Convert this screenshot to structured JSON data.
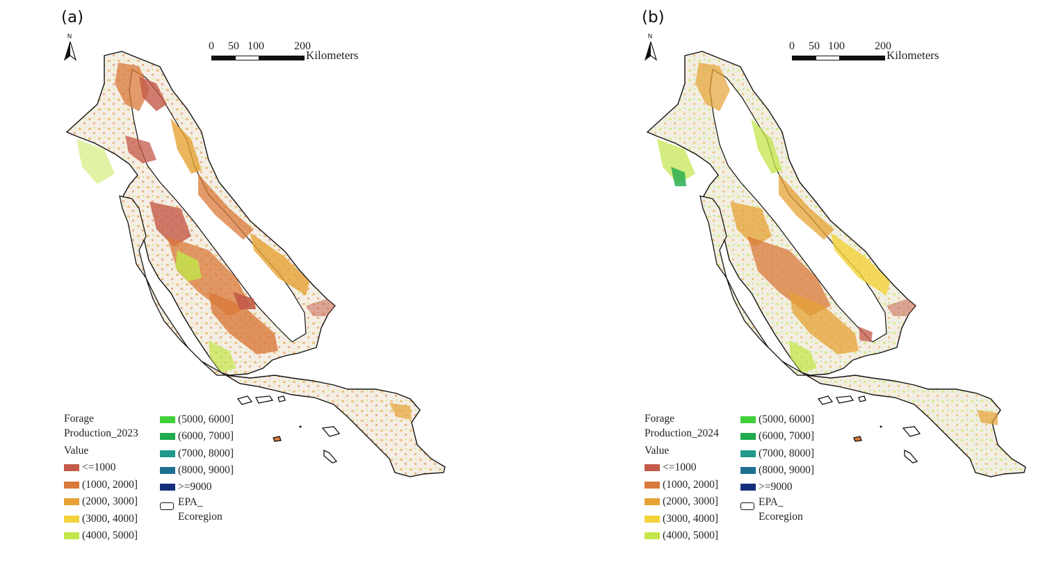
{
  "north_arrow_label": "N",
  "scale_bar": {
    "ticks": [
      "0",
      "50",
      "100",
      "200"
    ],
    "unit": "Kilometers"
  },
  "panels": [
    {
      "label": "(a)",
      "legend": {
        "title_line1": "Forage",
        "title_line2": "Production_2023",
        "value_label": "Value",
        "ecoregion_label_line1": "EPA_",
        "ecoregion_label_line2": "Ecoregion"
      }
    },
    {
      "label": "(b)",
      "legend": {
        "title_line1": "Forage",
        "title_line2": "Production_2024",
        "value_label": "Value",
        "ecoregion_label_line1": "EPA_",
        "ecoregion_label_line2": "Ecoregion"
      }
    }
  ],
  "classes": [
    {
      "label": "<=1000",
      "color": "#c45a48"
    },
    {
      "label": "(1000, 2000]",
      "color": "#d9793a"
    },
    {
      "label": "(2000, 3000]",
      "color": "#e6a234"
    },
    {
      "label": "(3000, 4000]",
      "color": "#f2d23a"
    },
    {
      "label": "(4000, 5000]",
      "color": "#c3e64a"
    },
    {
      "label": "(5000, 6000]",
      "color": "#3fd03b"
    },
    {
      "label": "(6000, 7000]",
      "color": "#1faa4e"
    },
    {
      "label": "(7000, 8000]",
      "color": "#21998a"
    },
    {
      "label": "(8000, 9000]",
      "color": "#1f6f91"
    },
    {
      "label": ">=9000",
      "color": "#132f7c"
    }
  ]
}
